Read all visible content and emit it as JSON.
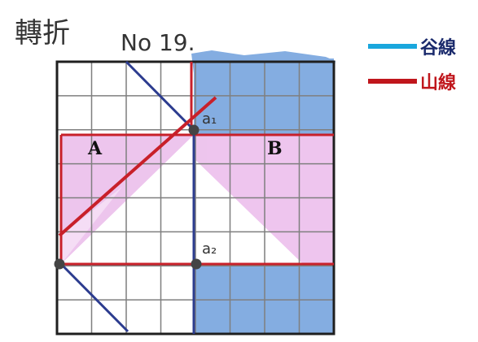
{
  "title": {
    "prefix": "轉折",
    "number": "No 19."
  },
  "legend": [
    {
      "key": "valley",
      "label": "谷線",
      "color": "#1aa7dd"
    },
    {
      "key": "mountain",
      "label": "山線",
      "color": "#c0161c"
    }
  ],
  "regions": {
    "a": "A",
    "b": "B"
  },
  "points": {
    "a1": "a₁",
    "a2": "a₂"
  },
  "colors": {
    "grid": "#7f7f7f",
    "frame": "#1f1f1f",
    "blue_fill": "#6f9fdc",
    "pink_fill": "#e8b2e8",
    "red_line": "#c8202a",
    "dark_blue_line": "#2c3c8f",
    "point": "#444444"
  }
}
